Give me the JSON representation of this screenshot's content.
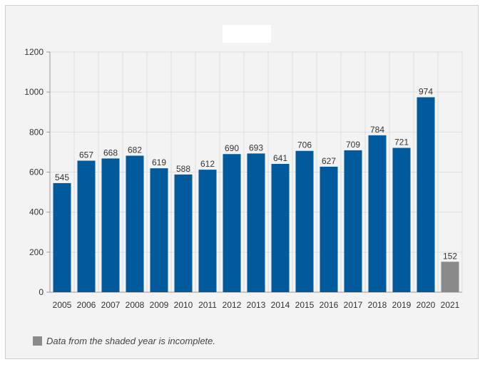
{
  "chart_data": {
    "type": "bar",
    "categories": [
      "2005",
      "2006",
      "2007",
      "2008",
      "2009",
      "2010",
      "2011",
      "2012",
      "2013",
      "2014",
      "2015",
      "2016",
      "2017",
      "2018",
      "2019",
      "2020",
      "2021"
    ],
    "values": [
      545,
      657,
      668,
      682,
      619,
      588,
      612,
      690,
      693,
      641,
      706,
      627,
      709,
      784,
      721,
      974,
      152
    ],
    "incomplete_categories": [
      "2021"
    ],
    "ylim": [
      0,
      1200
    ],
    "yticks": [
      0,
      200,
      400,
      600,
      800,
      1000,
      1200
    ],
    "grid": true,
    "title": "",
    "xlabel": "",
    "ylabel": ""
  },
  "footnote": "Data from the shaded year is incomplete.",
  "colors": {
    "bar": "#005a9c",
    "incomplete_bar": "#8a8a8a",
    "background": "#f3f3f3",
    "grid": "#dddddd",
    "axis": "#999999",
    "text": "#333333"
  }
}
